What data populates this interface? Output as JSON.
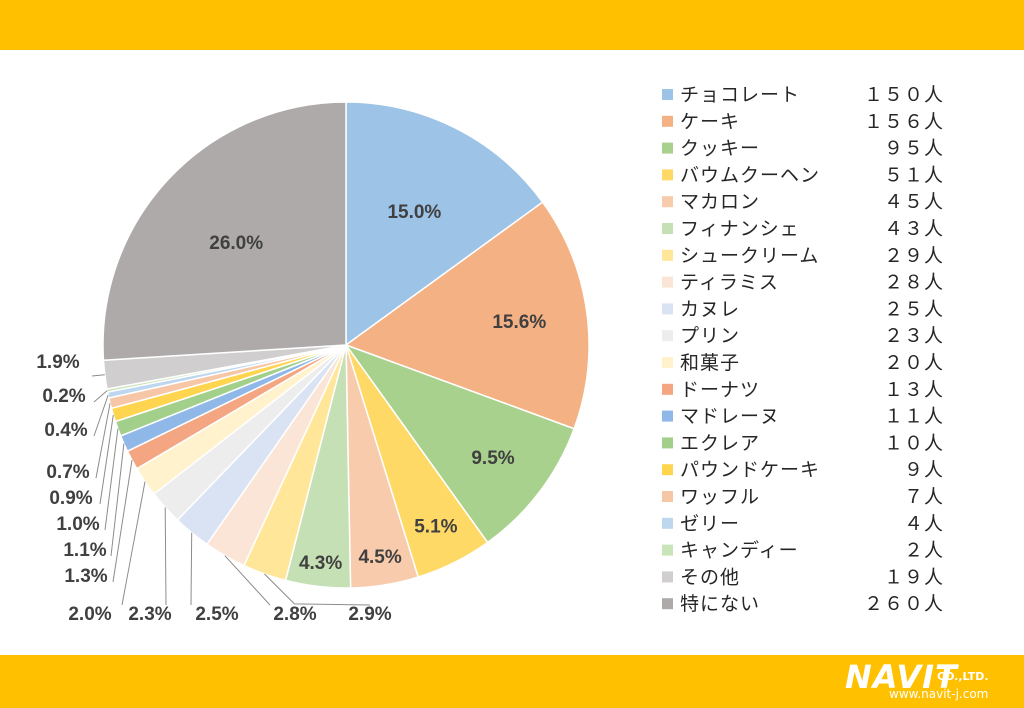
{
  "chart_data": {
    "type": "pie",
    "title": "",
    "slices": [
      {
        "label": "チョコレート",
        "count": "１５０人",
        "pct": "15.0%",
        "value": 15.0,
        "color": "#9DC3E6"
      },
      {
        "label": "ケーキ",
        "count": "１５６人",
        "pct": "15.6%",
        "value": 15.6,
        "color": "#F4B183"
      },
      {
        "label": "クッキー",
        "count": "９５人",
        "pct": "9.5%",
        "value": 9.5,
        "color": "#A9D18E"
      },
      {
        "label": "バウムクーヘン",
        "count": "５１人",
        "pct": "5.1%",
        "value": 5.1,
        "color": "#FFD966"
      },
      {
        "label": "マカロン",
        "count": "４５人",
        "pct": "4.5%",
        "value": 4.5,
        "color": "#F8CBAD"
      },
      {
        "label": "フィナンシェ",
        "count": "４３人",
        "pct": "4.3%",
        "value": 4.3,
        "color": "#C5E0B4"
      },
      {
        "label": "シュークリーム",
        "count": "２９人",
        "pct": "2.9%",
        "value": 2.9,
        "color": "#FFE699"
      },
      {
        "label": "ティラミス",
        "count": "２８人",
        "pct": "2.8%",
        "value": 2.8,
        "color": "#FBE5D6"
      },
      {
        "label": "カヌレ",
        "count": "２５人",
        "pct": "2.5%",
        "value": 2.5,
        "color": "#DAE3F3"
      },
      {
        "label": "プリン",
        "count": "２３人",
        "pct": "2.3%",
        "value": 2.3,
        "color": "#EDEDED"
      },
      {
        "label": "和菓子",
        "count": "２０人",
        "pct": "2.0%",
        "value": 2.0,
        "color": "#FFF2CC"
      },
      {
        "label": "ドーナツ",
        "count": "１３人",
        "pct": "1.3%",
        "value": 1.3,
        "color": "#F4A582"
      },
      {
        "label": "マドレーヌ",
        "count": "１１人",
        "pct": "1.1%",
        "value": 1.1,
        "color": "#8FB8E8"
      },
      {
        "label": "エクレア",
        "count": "１０人",
        "pct": "1.0%",
        "value": 1.0,
        "color": "#A2D08A"
      },
      {
        "label": "パウンドケーキ",
        "count": "９人",
        "pct": "0.9%",
        "value": 0.9,
        "color": "#FFD54F"
      },
      {
        "label": "ワッフル",
        "count": "７人",
        "pct": "0.7%",
        "value": 0.7,
        "color": "#F7C6A6"
      },
      {
        "label": "ゼリー",
        "count": "４人",
        "pct": "0.4%",
        "value": 0.4,
        "color": "#BDD7EE"
      },
      {
        "label": "キャンディー",
        "count": "２人",
        "pct": "0.2%",
        "value": 0.2,
        "color": "#C9E4B8"
      },
      {
        "label": "その他",
        "count": "１９人",
        "pct": "1.9%",
        "value": 1.9,
        "color": "#D0CECE"
      },
      {
        "label": "特にない",
        "count": "２６０人",
        "pct": "26.0%",
        "value": 26.0,
        "color": "#AEAAAA"
      }
    ]
  },
  "footer": {
    "logo_text": "NAVIT",
    "logo_suffix": "CO.,LTD.",
    "url": "www.navit-j.com"
  }
}
